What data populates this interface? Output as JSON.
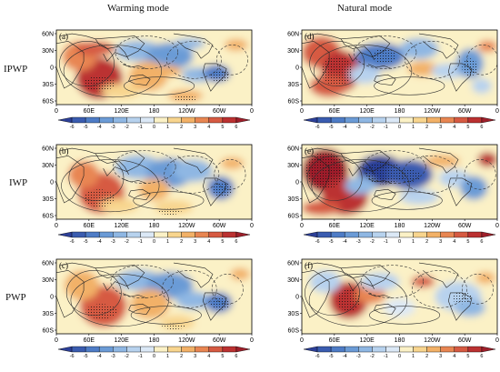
{
  "figure": {
    "columns": [
      {
        "title": "Warming mode"
      },
      {
        "title": "Natural mode"
      }
    ],
    "rows": [
      {
        "label": "IPWP"
      },
      {
        "label": "IWP"
      },
      {
        "label": "PWP"
      }
    ],
    "panels": [
      {
        "letter": "(a)",
        "row": 0,
        "col": 0,
        "pattern": "warm-a"
      },
      {
        "letter": "(d)",
        "row": 0,
        "col": 1,
        "pattern": "nat-d"
      },
      {
        "letter": "(b)",
        "row": 1,
        "col": 0,
        "pattern": "warm-b"
      },
      {
        "letter": "(e)",
        "row": 1,
        "col": 1,
        "pattern": "nat-e"
      },
      {
        "letter": "(c)",
        "row": 2,
        "col": 0,
        "pattern": "warm-c"
      },
      {
        "letter": "(f)",
        "row": 2,
        "col": 1,
        "pattern": "nat-f"
      }
    ],
    "lat_ticks": [
      "60N",
      "30N",
      "0",
      "30S",
      "60S"
    ],
    "lon_ticks": [
      "0",
      "60E",
      "120E",
      "180",
      "120W",
      "60W",
      "0"
    ],
    "colorbar": {
      "ticks": [
        "-6",
        "-5",
        "-4",
        "-3",
        "-2",
        "-1",
        "0",
        "1",
        "2",
        "3",
        "4",
        "5",
        "6"
      ],
      "colors": [
        "#2c3f98",
        "#3a5cb0",
        "#4e7cc6",
        "#6b9bd6",
        "#8fb7e3",
        "#b7d2ee",
        "#dbe8f6",
        "#fbf1c6",
        "#f8d58e",
        "#f2b167",
        "#e88652",
        "#d65a42",
        "#bb3131",
        "#9e1f2a"
      ]
    }
  }
}
